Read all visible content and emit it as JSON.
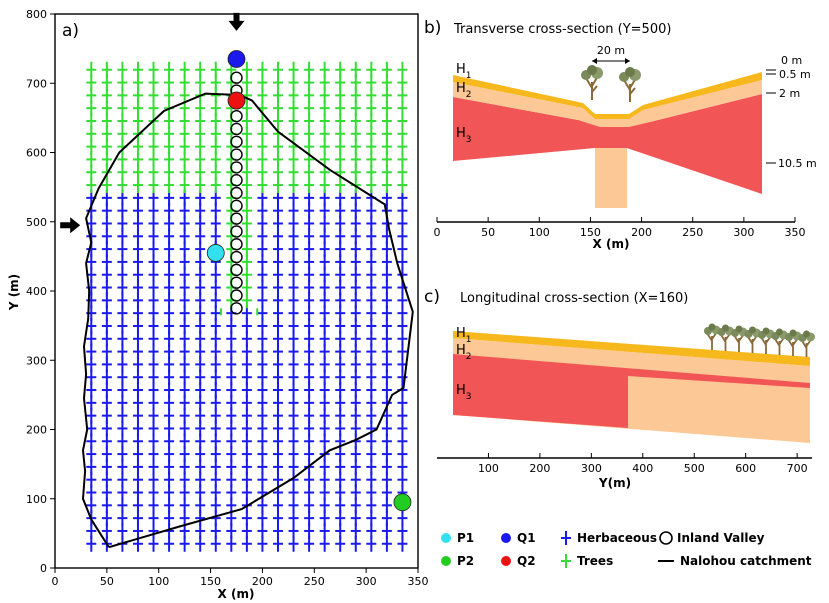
{
  "panel_a": {
    "letter": "a)",
    "xlabel": "X (m)",
    "ylabel": "Y (m)",
    "xlim": [
      0,
      350
    ],
    "ylim": [
      0,
      800
    ],
    "xticks": [
      0,
      50,
      100,
      150,
      200,
      250,
      300,
      350
    ],
    "yticks": [
      0,
      100,
      200,
      300,
      400,
      500,
      600,
      700,
      800
    ],
    "points": [
      {
        "name": "P1",
        "x": 155,
        "y": 455,
        "color": "#33e0f0"
      },
      {
        "name": "P2",
        "x": 335,
        "y": 95,
        "color": "#22cc22"
      },
      {
        "name": "Q1",
        "x": 175,
        "y": 735,
        "color": "#1a1aee"
      },
      {
        "name": "Q2",
        "x": 175,
        "y": 675,
        "color": "#ee1111"
      }
    ],
    "inland_valley": {
      "x": 175,
      "y_from": 375,
      "y_to": 715,
      "step": 18.5
    },
    "arrows": [
      {
        "x": 175,
        "y": 790,
        "dir": "down"
      },
      {
        "x": 5,
        "y": 495,
        "dir": "right"
      }
    ],
    "catchment_boundary": [
      [
        52,
        30
      ],
      [
        120,
        60
      ],
      [
        180,
        85
      ],
      [
        230,
        130
      ],
      [
        265,
        170
      ],
      [
        290,
        185
      ],
      [
        310,
        200
      ],
      [
        325,
        250
      ],
      [
        336,
        260
      ],
      [
        345,
        370
      ],
      [
        330,
        440
      ],
      [
        322,
        490
      ],
      [
        318,
        525
      ],
      [
        265,
        575
      ],
      [
        215,
        630
      ],
      [
        190,
        675
      ],
      [
        178,
        683
      ],
      [
        145,
        685
      ],
      [
        105,
        660
      ],
      [
        62,
        600
      ],
      [
        42,
        548
      ],
      [
        30,
        505
      ],
      [
        35,
        470
      ],
      [
        30,
        440
      ],
      [
        33,
        400
      ],
      [
        32,
        360
      ],
      [
        28,
        320
      ],
      [
        30,
        280
      ],
      [
        28,
        245
      ],
      [
        31,
        200
      ],
      [
        27,
        170
      ],
      [
        29,
        140
      ],
      [
        27,
        100
      ],
      [
        35,
        70
      ],
      [
        52,
        30
      ]
    ]
  },
  "panel_b": {
    "letter": "b)",
    "subtitle": "Transverse cross-section (Y=500)",
    "xlabel": "X (m)",
    "xticks": [
      0,
      50,
      100,
      150,
      200,
      250,
      300,
      350
    ],
    "layers": [
      "H1",
      "H2",
      "H3"
    ],
    "depths": [
      "0 m",
      "0.5 m",
      "2 m",
      "10.5 m"
    ],
    "width_annotation": "20 m"
  },
  "panel_c": {
    "letter": "c)",
    "subtitle": "Longitudinal cross-section (X=160)",
    "xlabel": "Y(m)",
    "xticks": [
      100,
      200,
      300,
      400,
      500,
      600,
      700
    ],
    "layers": [
      "H1",
      "H2",
      "H3"
    ]
  },
  "legend": {
    "items": [
      {
        "label": "P1",
        "kind": "dot",
        "color": "#33e0f0"
      },
      {
        "label": "Q1",
        "kind": "dot",
        "color": "#1a1aee"
      },
      {
        "label": "Herbaceous",
        "kind": "cross",
        "color": "#1a1aee"
      },
      {
        "label": "Inland Valley",
        "kind": "ring",
        "color": "#000000"
      },
      {
        "label": "P2",
        "kind": "dot",
        "color": "#22cc22"
      },
      {
        "label": "Q2",
        "kind": "dot",
        "color": "#ee1111"
      },
      {
        "label": "Trees",
        "kind": "cross",
        "color": "#33dd33"
      },
      {
        "label": "Nalohou catchment",
        "kind": "line",
        "color": "#000000"
      }
    ]
  },
  "colors": {
    "herbaceous": "#1a1aee",
    "trees": "#33dd33",
    "h1": "#f7b81e",
    "h2": "#fcc996",
    "h3": "#f25555",
    "trunk": "#8a6a3a",
    "foliage": "#7a8a5a"
  }
}
